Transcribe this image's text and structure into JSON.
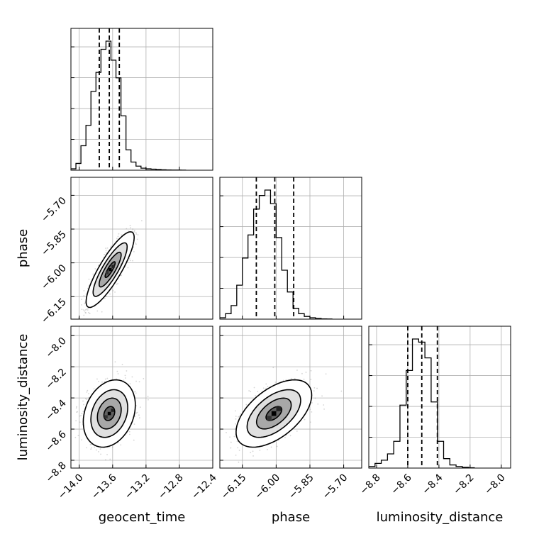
{
  "chart_data": {
    "type": "corner",
    "parameters": [
      "geocent_time",
      "phase",
      "luminosity_distance"
    ],
    "axis_labels": {
      "geocent_time": "geocent_time",
      "phase": "phase",
      "luminosity_distance": "luminosity_distance"
    },
    "ranges": {
      "geocent_time": [
        -14.1,
        -12.4
      ],
      "phase": [
        -6.25,
        -5.62
      ],
      "luminosity_distance": [
        -8.85,
        -7.94
      ]
    },
    "ticks": {
      "geocent_time": [
        {
          "v": -14.0,
          "label": "−14.0"
        },
        {
          "v": -13.6,
          "label": "−13.6"
        },
        {
          "v": -13.2,
          "label": "−13.2"
        },
        {
          "v": -12.8,
          "label": "−12.8"
        },
        {
          "v": -12.4,
          "label": "−12.4"
        }
      ],
      "phase": [
        {
          "v": -6.15,
          "label": "−6.15"
        },
        {
          "v": -6.0,
          "label": "−6.00"
        },
        {
          "v": -5.85,
          "label": "−5.85"
        },
        {
          "v": -5.7,
          "label": "−5.70"
        }
      ],
      "luminosity_distance": [
        {
          "v": -8.8,
          "label": "−8.8"
        },
        {
          "v": -8.6,
          "label": "−8.6"
        },
        {
          "v": -8.4,
          "label": "−8.4"
        },
        {
          "v": -8.2,
          "label": "−8.2"
        },
        {
          "v": -8.0,
          "label": "−8.0"
        }
      ]
    },
    "histograms": {
      "geocent_time": {
        "bins": [
          -14.1,
          -14.04,
          -13.98,
          -13.92,
          -13.86,
          -13.8,
          -13.74,
          -13.68,
          -13.62,
          -13.56,
          -13.5,
          -13.44,
          -13.38,
          -13.32,
          -13.26,
          -13.2,
          -13.14,
          -13.08,
          -13.02,
          -12.96,
          -12.9,
          -12.84,
          -12.78,
          -12.72
        ],
        "counts": [
          0.01,
          0.05,
          0.18,
          0.33,
          0.58,
          0.72,
          0.89,
          0.95,
          0.81,
          0.68,
          0.4,
          0.15,
          0.06,
          0.03,
          0.015,
          0.01,
          0.008,
          0.005,
          0.003,
          0.002,
          0.001,
          0.001,
          0.0005
        ],
        "quantiles": [
          -13.76,
          -13.64,
          -13.52
        ],
        "peak": 0.95
      },
      "phase": {
        "bins": [
          -6.25,
          -6.225,
          -6.2,
          -6.175,
          -6.15,
          -6.125,
          -6.1,
          -6.075,
          -6.05,
          -6.025,
          -6.0,
          -5.975,
          -5.95,
          -5.925,
          -5.9,
          -5.875,
          -5.85,
          -5.825,
          -5.8,
          -5.775,
          -5.75
        ],
        "counts": [
          0.01,
          0.04,
          0.1,
          0.25,
          0.45,
          0.62,
          0.81,
          0.91,
          0.95,
          0.85,
          0.6,
          0.36,
          0.2,
          0.08,
          0.04,
          0.02,
          0.01,
          0.005,
          0.002,
          0.001
        ],
        "quantiles": [
          -6.088,
          -6.006,
          -5.922
        ],
        "peak": 0.95
      },
      "luminosity_distance": {
        "bins": [
          -8.85,
          -8.81,
          -8.77,
          -8.73,
          -8.69,
          -8.65,
          -8.61,
          -8.57,
          -8.53,
          -8.49,
          -8.45,
          -8.41,
          -8.37,
          -8.33,
          -8.29,
          -8.25,
          -8.21,
          -8.17
        ],
        "counts": [
          0.01,
          0.03,
          0.05,
          0.09,
          0.17,
          0.4,
          0.62,
          0.82,
          0.8,
          0.7,
          0.42,
          0.17,
          0.06,
          0.02,
          0.01,
          0.005,
          0.002
        ],
        "quantiles": [
          -8.6,
          -8.51,
          -8.41
        ],
        "peak": 0.82
      }
    },
    "joint": [
      {
        "x": "geocent_time",
        "y": "phase",
        "mean": [
          -13.63,
          -6.03
        ],
        "sd": [
          0.12,
          0.07
        ],
        "rho": 0.85
      },
      {
        "x": "geocent_time",
        "y": "luminosity_distance",
        "mean": [
          -13.64,
          -8.5
        ],
        "sd": [
          0.13,
          0.09
        ],
        "rho": 0.25
      },
      {
        "x": "phase",
        "y": "luminosity_distance",
        "mean": [
          -6.01,
          -8.5
        ],
        "sd": [
          0.07,
          0.09
        ],
        "rho": 0.55
      }
    ],
    "grid": true,
    "legend": "none"
  }
}
